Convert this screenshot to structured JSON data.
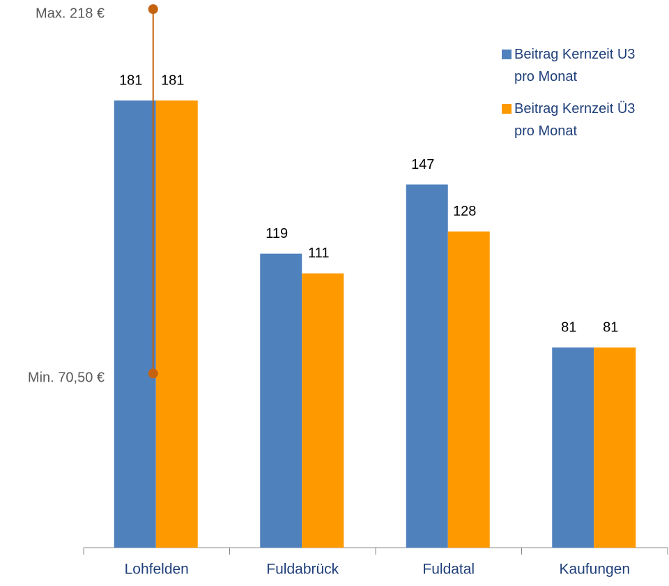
{
  "chart_data": {
    "type": "bar",
    "categories": [
      "Lohfelden",
      "Fuldabrück",
      "Fuldatal",
      "Kaufungen"
    ],
    "series": [
      {
        "name": "Beitrag Kernzeit U3 pro Monat",
        "color": "#4f81bd",
        "values": [
          181,
          119,
          147,
          81
        ]
      },
      {
        "name": "Beitrag Kernzeit Ü3 pro Monat",
        "color": "#ff9900",
        "values": [
          181,
          111,
          128,
          81
        ]
      }
    ],
    "ylim": [
      0,
      220
    ],
    "legend": "upper right",
    "annotations": [
      {
        "label": "Max. 218 €",
        "value": 218,
        "color": "#c5620f"
      },
      {
        "label": "Min. 70,50 €",
        "value": 70.5,
        "color": "#c5620f"
      }
    ]
  }
}
